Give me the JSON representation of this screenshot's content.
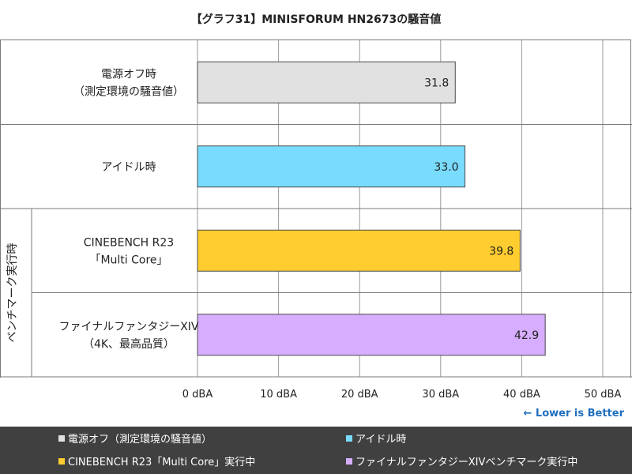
{
  "chart_data": {
    "type": "bar",
    "orientation": "horizontal",
    "title": "【グラフ31】MINISFORUM HN2673の騒音値",
    "categories": [
      {
        "lines": [
          "電源オフ時",
          "（測定環境の騒音値）"
        ]
      },
      {
        "lines": [
          "アイドル時"
        ]
      },
      {
        "lines": [
          "CINEBENCH R23",
          "「Multi Core」"
        ]
      },
      {
        "lines": [
          "ファイナルファンタジーXIV",
          "（4K、最高品質）"
        ]
      }
    ],
    "values": [
      31.8,
      33.0,
      39.8,
      42.9
    ],
    "value_labels": [
      "31.8",
      "33.0",
      "39.8",
      "42.9"
    ],
    "colors": [
      "#e1e1e1",
      "#79dcff",
      "#ffcd2f",
      "#d6adff"
    ],
    "group_label": "ベンチマーク実行時",
    "xlim": [
      0,
      50
    ],
    "xticks": [
      0,
      10,
      20,
      30,
      40,
      50
    ],
    "xtick_labels": [
      "0 dBA",
      "10 dBA",
      "20 dBA",
      "30 dBA",
      "40 dBA",
      "50 dBA"
    ],
    "grid": true,
    "legend": [
      {
        "label": "電源オフ（測定環境の騒音値）",
        "color": "#e1e1e1"
      },
      {
        "label": "アイドル時",
        "color": "#79dcff"
      },
      {
        "label": "CINEBENCH R23「Multi Core」実行中",
        "color": "#ffcd2f"
      },
      {
        "label": "ファイナルファンタジーXIVベンチマーク実行中",
        "color": "#d6adff"
      }
    ],
    "legend_position": "bottom",
    "annotation": "← Lower is Better"
  }
}
